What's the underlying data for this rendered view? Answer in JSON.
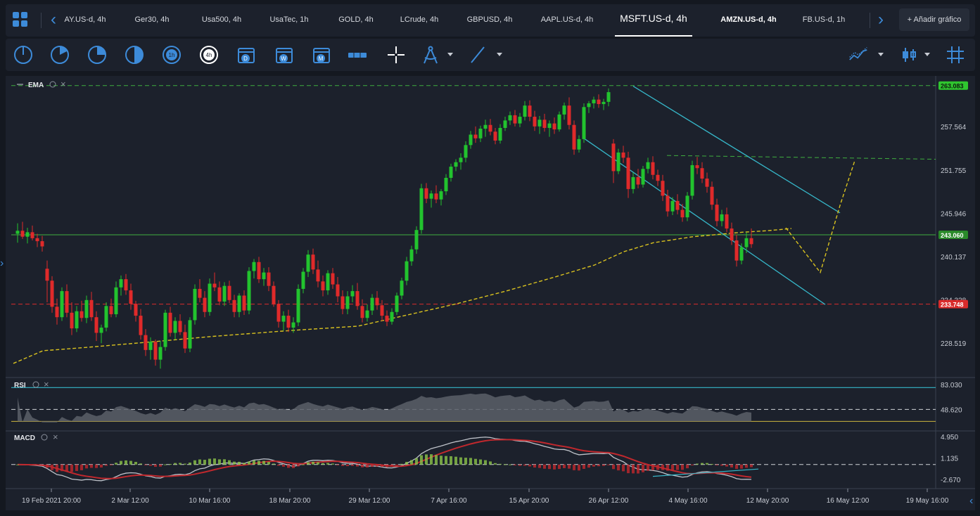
{
  "tabs": [
    {
      "label": "AY.US-d, 4h",
      "active": false
    },
    {
      "label": "Ger30, 4h",
      "active": false
    },
    {
      "label": "Usa500, 4h",
      "active": false
    },
    {
      "label": "UsaTec, 1h",
      "active": false
    },
    {
      "label": "GOLD, 4h",
      "active": false
    },
    {
      "label": "LCrude, 4h",
      "active": false
    },
    {
      "label": "GBPUSD, 4h",
      "active": false
    },
    {
      "label": "AAPL.US-d, 4h",
      "active": false
    },
    {
      "label": "MSFT.US-d, 4h",
      "active": true
    },
    {
      "label": "AMZN.US-d, 4h",
      "active": false
    },
    {
      "label": "FB.US-d, 1h",
      "active": false
    }
  ],
  "add_chart_label": "+ Añadir gráfico",
  "toolbar": {
    "tools": [
      "circle-quarter-icon",
      "circle-third-icon",
      "circle-pie-icon",
      "circle-half-icon",
      "timeframe-1h-icon",
      "timeframe-4h-icon",
      "calendar-d-icon",
      "calendar-w-icon",
      "calendar-m-icon",
      "ruler-icon",
      "crosshair-icon",
      "compass-icon",
      "trendline-icon"
    ],
    "timeframe_1h": "1h",
    "timeframe_4h": "4h",
    "cal_d": "D",
    "cal_w": "W",
    "cal_m": "M"
  },
  "colors": {
    "up": "#22c32e",
    "down": "#e02a2a",
    "ema": "#d9c21f",
    "channel": "#36b6c8",
    "green_line": "#3fae3f",
    "red_line": "#d92b2b",
    "rsi_level": "#36b6c8",
    "rsi_low_level": "#b8a43c"
  },
  "indicators": {
    "ema_label": "EMA",
    "rsi_label": "RSI",
    "macd_label": "MACD"
  },
  "chart_data": {
    "type": "candlestick",
    "symbol": "MSFT.US-d",
    "timeframe": "4h",
    "price_axis_ticks": [
      "257.564",
      "251.755",
      "245.946",
      "240.137",
      "234.328",
      "228.519"
    ],
    "price_labels": [
      {
        "value": "263.083",
        "kind": "green-dashed"
      },
      {
        "value": "243.060",
        "kind": "green"
      },
      {
        "value": "233.748",
        "kind": "red-dashed"
      }
    ],
    "ylim": [
      224.0,
      264.0
    ],
    "x_ticks": [
      "19 Feb 2021 20:00",
      "2 Mar 12:00",
      "10 Mar 16:00",
      "18 Mar 20:00",
      "29 Mar 12:00",
      "7 Apr 16:00",
      "15 Apr 20:00",
      "26 Apr 12:00",
      "4 May 16:00",
      "12 May 20:00",
      "16 May 12:00",
      "19 May 16:00"
    ],
    "candles": [
      [
        243.2,
        244.6,
        242.0,
        243.6
      ],
      [
        243.6,
        244.8,
        242.5,
        242.8
      ],
      [
        242.8,
        244.0,
        241.9,
        243.4
      ],
      [
        243.4,
        244.3,
        242.3,
        242.6
      ],
      [
        242.6,
        243.2,
        241.4,
        242.2
      ],
      [
        242.2,
        242.9,
        240.8,
        241.5
      ],
      [
        238.5,
        239.6,
        234.0,
        236.9
      ],
      [
        236.9,
        237.5,
        232.6,
        233.4
      ],
      [
        233.4,
        234.5,
        231.0,
        232.0
      ],
      [
        232.0,
        236.0,
        231.5,
        235.5
      ],
      [
        235.5,
        236.4,
        232.0,
        232.6
      ],
      [
        232.6,
        234.0,
        229.6,
        230.5
      ],
      [
        230.5,
        233.5,
        230.0,
        232.8
      ],
      [
        232.8,
        234.2,
        231.4,
        231.9
      ],
      [
        231.9,
        234.9,
        231.2,
        234.3
      ],
      [
        234.3,
        235.4,
        231.5,
        232.0
      ],
      [
        232.0,
        232.8,
        228.8,
        229.9
      ],
      [
        229.9,
        231.0,
        228.5,
        230.6
      ],
      [
        230.6,
        234.0,
        230.1,
        233.5
      ],
      [
        233.5,
        234.5,
        232.0,
        232.4
      ],
      [
        232.4,
        236.8,
        232.0,
        236.0
      ],
      [
        236.0,
        237.6,
        234.9,
        237.1
      ],
      [
        237.1,
        237.8,
        235.0,
        235.6
      ],
      [
        235.6,
        236.5,
        233.0,
        233.8
      ],
      [
        233.8,
        234.2,
        231.4,
        232.2
      ],
      [
        232.2,
        233.1,
        229.0,
        229.6
      ],
      [
        229.6,
        230.4,
        226.8,
        227.6
      ],
      [
        227.6,
        229.3,
        226.3,
        228.7
      ],
      [
        228.7,
        229.0,
        225.5,
        226.3
      ],
      [
        226.3,
        228.8,
        225.1,
        228.0
      ],
      [
        228.0,
        233.0,
        227.5,
        232.6
      ],
      [
        232.6,
        233.4,
        229.4,
        229.9
      ],
      [
        229.9,
        232.0,
        229.0,
        231.5
      ],
      [
        231.5,
        232.4,
        229.6,
        230.0
      ],
      [
        230.0,
        231.0,
        227.2,
        227.8
      ],
      [
        227.8,
        232.0,
        227.3,
        231.6
      ],
      [
        231.6,
        236.4,
        231.0,
        235.8
      ],
      [
        235.8,
        237.1,
        234.0,
        234.6
      ],
      [
        234.6,
        235.5,
        232.0,
        232.7
      ],
      [
        232.7,
        237.2,
        232.2,
        236.5
      ],
      [
        236.5,
        238.0,
        235.5,
        236.0
      ],
      [
        236.0,
        236.8,
        233.6,
        234.1
      ],
      [
        234.1,
        236.7,
        233.5,
        236.2
      ],
      [
        236.2,
        236.9,
        233.9,
        234.3
      ],
      [
        234.3,
        235.0,
        232.0,
        232.7
      ],
      [
        232.7,
        235.2,
        232.0,
        234.9
      ],
      [
        234.9,
        235.6,
        232.3,
        232.9
      ],
      [
        232.9,
        238.7,
        232.4,
        238.2
      ],
      [
        238.2,
        239.8,
        237.2,
        239.4
      ],
      [
        239.4,
        240.1,
        236.6,
        237.1
      ],
      [
        237.1,
        238.6,
        236.2,
        238.0
      ],
      [
        238.0,
        238.7,
        235.5,
        236.2
      ],
      [
        236.2,
        236.8,
        233.4,
        233.8
      ],
      [
        233.8,
        234.3,
        230.6,
        231.4
      ],
      [
        231.4,
        232.8,
        230.2,
        232.2
      ],
      [
        232.2,
        233.0,
        230.0,
        230.6
      ],
      [
        230.6,
        232.0,
        229.9,
        231.3
      ],
      [
        231.3,
        236.4,
        230.8,
        235.8
      ],
      [
        235.8,
        238.6,
        235.2,
        238.1
      ],
      [
        238.1,
        241.0,
        237.4,
        240.4
      ],
      [
        240.4,
        241.2,
        237.8,
        238.4
      ],
      [
        238.4,
        239.6,
        236.0,
        236.8
      ],
      [
        236.8,
        237.6,
        234.8,
        235.6
      ],
      [
        235.6,
        238.3,
        235.0,
        237.9
      ],
      [
        237.9,
        238.6,
        235.8,
        236.4
      ],
      [
        236.4,
        237.4,
        234.0,
        234.8
      ],
      [
        234.8,
        235.6,
        232.4,
        233.1
      ],
      [
        233.1,
        235.5,
        232.4,
        234.8
      ],
      [
        234.8,
        236.3,
        234.0,
        235.5
      ],
      [
        235.5,
        236.6,
        233.0,
        233.5
      ],
      [
        233.5,
        234.4,
        231.3,
        231.9
      ],
      [
        231.9,
        233.7,
        231.4,
        232.9
      ],
      [
        232.9,
        235.1,
        232.3,
        234.6
      ],
      [
        234.6,
        235.5,
        233.0,
        233.6
      ],
      [
        233.6,
        234.3,
        231.5,
        232.2
      ],
      [
        232.2,
        232.9,
        230.8,
        231.4
      ],
      [
        231.4,
        233.2,
        231.0,
        232.7
      ],
      [
        232.7,
        235.3,
        232.3,
        234.9
      ],
      [
        234.9,
        237.3,
        234.4,
        236.9
      ],
      [
        236.9,
        240.1,
        236.3,
        239.5
      ],
      [
        239.5,
        241.6,
        238.9,
        241.1
      ],
      [
        241.1,
        244.2,
        240.5,
        243.7
      ],
      [
        243.7,
        249.9,
        243.2,
        249.3
      ],
      [
        249.3,
        250.0,
        247.3,
        247.9
      ],
      [
        247.9,
        249.0,
        246.7,
        248.6
      ],
      [
        248.6,
        249.7,
        247.3,
        247.8
      ],
      [
        247.8,
        249.2,
        247.0,
        248.9
      ],
      [
        248.9,
        251.2,
        248.4,
        250.7
      ],
      [
        250.7,
        252.6,
        250.2,
        252.2
      ],
      [
        252.2,
        253.2,
        251.6,
        252.8
      ],
      [
        252.8,
        254.0,
        251.8,
        253.4
      ],
      [
        253.4,
        255.6,
        252.8,
        255.1
      ],
      [
        255.1,
        257.0,
        254.6,
        256.5
      ],
      [
        256.5,
        257.6,
        255.4,
        256.0
      ],
      [
        256.0,
        257.7,
        255.5,
        257.3
      ],
      [
        257.3,
        258.5,
        256.2,
        257.8
      ],
      [
        257.8,
        258.6,
        256.4,
        256.9
      ],
      [
        256.9,
        257.4,
        255.2,
        255.7
      ],
      [
        255.7,
        257.9,
        255.3,
        257.4
      ],
      [
        257.4,
        258.9,
        257.0,
        258.4
      ],
      [
        258.4,
        259.6,
        257.8,
        259.1
      ],
      [
        259.1,
        259.8,
        257.6,
        258.0
      ],
      [
        258.0,
        259.4,
        257.5,
        258.9
      ],
      [
        258.9,
        261.0,
        258.4,
        260.4
      ],
      [
        260.4,
        261.1,
        258.3,
        258.9
      ],
      [
        258.9,
        259.7,
        257.0,
        257.6
      ],
      [
        257.6,
        259.0,
        256.6,
        258.5
      ],
      [
        258.5,
        259.3,
        256.9,
        257.4
      ],
      [
        257.4,
        258.4,
        256.2,
        258.0
      ],
      [
        258.0,
        258.8,
        256.6,
        257.2
      ],
      [
        257.2,
        259.6,
        256.9,
        259.2
      ],
      [
        259.2,
        260.8,
        258.5,
        260.4
      ],
      [
        260.4,
        261.5,
        257.2,
        257.8
      ],
      [
        257.8,
        258.4,
        253.8,
        254.5
      ],
      [
        254.5,
        256.4,
        254.1,
        255.9
      ],
      [
        255.9,
        260.7,
        255.4,
        260.2
      ],
      [
        260.2,
        261.0,
        259.4,
        260.7
      ],
      [
        260.7,
        261.6,
        260.0,
        261.2
      ],
      [
        261.2,
        261.9,
        260.1,
        260.6
      ],
      [
        260.6,
        261.3,
        259.8,
        260.9
      ],
      [
        260.9,
        262.7,
        260.3,
        262.2
      ],
      [
        255.3,
        255.9,
        250.0,
        251.6
      ],
      [
        251.6,
        254.6,
        251.2,
        254.1
      ],
      [
        254.1,
        255.0,
        252.7,
        253.4
      ],
      [
        253.4,
        254.2,
        248.0,
        249.2
      ],
      [
        249.2,
        251.4,
        248.6,
        250.8
      ],
      [
        250.8,
        251.9,
        249.3,
        249.8
      ],
      [
        249.8,
        252.3,
        249.4,
        251.9
      ],
      [
        251.9,
        253.4,
        251.3,
        252.8
      ],
      [
        252.8,
        253.6,
        250.5,
        251.1
      ],
      [
        251.1,
        251.8,
        249.6,
        250.3
      ],
      [
        250.3,
        251.1,
        247.6,
        248.3
      ],
      [
        248.3,
        249.1,
        245.5,
        246.2
      ],
      [
        246.2,
        248.1,
        245.7,
        247.6
      ],
      [
        247.6,
        248.5,
        245.8,
        246.4
      ],
      [
        246.4,
        247.2,
        244.8,
        245.4
      ],
      [
        245.4,
        248.8,
        244.9,
        248.3
      ],
      [
        248.3,
        253.0,
        247.8,
        252.4
      ],
      [
        252.4,
        253.5,
        251.2,
        252.0
      ],
      [
        252.0,
        252.8,
        250.0,
        250.6
      ],
      [
        250.6,
        251.4,
        248.7,
        249.5
      ],
      [
        249.5,
        250.2,
        246.4,
        247.1
      ],
      [
        247.1,
        247.9,
        244.2,
        244.9
      ],
      [
        244.9,
        246.4,
        244.2,
        245.8
      ],
      [
        245.8,
        246.7,
        243.4,
        243.9
      ],
      [
        243.9,
        244.7,
        241.7,
        242.3
      ],
      [
        242.3,
        243.1,
        238.8,
        239.6
      ],
      [
        239.6,
        241.9,
        239.1,
        241.4
      ],
      [
        241.4,
        243.4,
        240.6,
        242.6
      ],
      [
        242.6,
        243.9,
        241.3,
        241.8
      ]
    ],
    "ema_line": [
      [
        0,
        225.8
      ],
      [
        6,
        227.5
      ],
      [
        14,
        227.9
      ],
      [
        30,
        228.8
      ],
      [
        40,
        229.4
      ],
      [
        56,
        230.2
      ],
      [
        70,
        230.8
      ],
      [
        80,
        232.3
      ],
      [
        90,
        233.8
      ],
      [
        100,
        235.5
      ],
      [
        110,
        237.4
      ],
      [
        118,
        239.0
      ],
      [
        124,
        240.8
      ],
      [
        130,
        242.0
      ],
      [
        138,
        242.8
      ],
      [
        148,
        243.4
      ],
      [
        153,
        243.6
      ],
      [
        158,
        243.9
      ]
    ],
    "projection": [
      [
        156,
        244.0
      ],
      [
        163,
        238.0
      ],
      [
        167,
        247.0
      ],
      [
        170,
        253.0
      ]
    ],
    "channel_upper": [
      [
        125,
        263.0
      ],
      [
        167,
        246.0
      ]
    ],
    "channel_lower": [
      [
        115,
        256.0
      ],
      [
        164,
        233.7
      ]
    ],
    "rsi": {
      "ticks": [
        "83.030",
        "48.620"
      ],
      "levels": [
        70,
        30
      ]
    },
    "macd": {
      "ticks": [
        "4.950",
        "1.135",
        "-2.670"
      ]
    }
  }
}
